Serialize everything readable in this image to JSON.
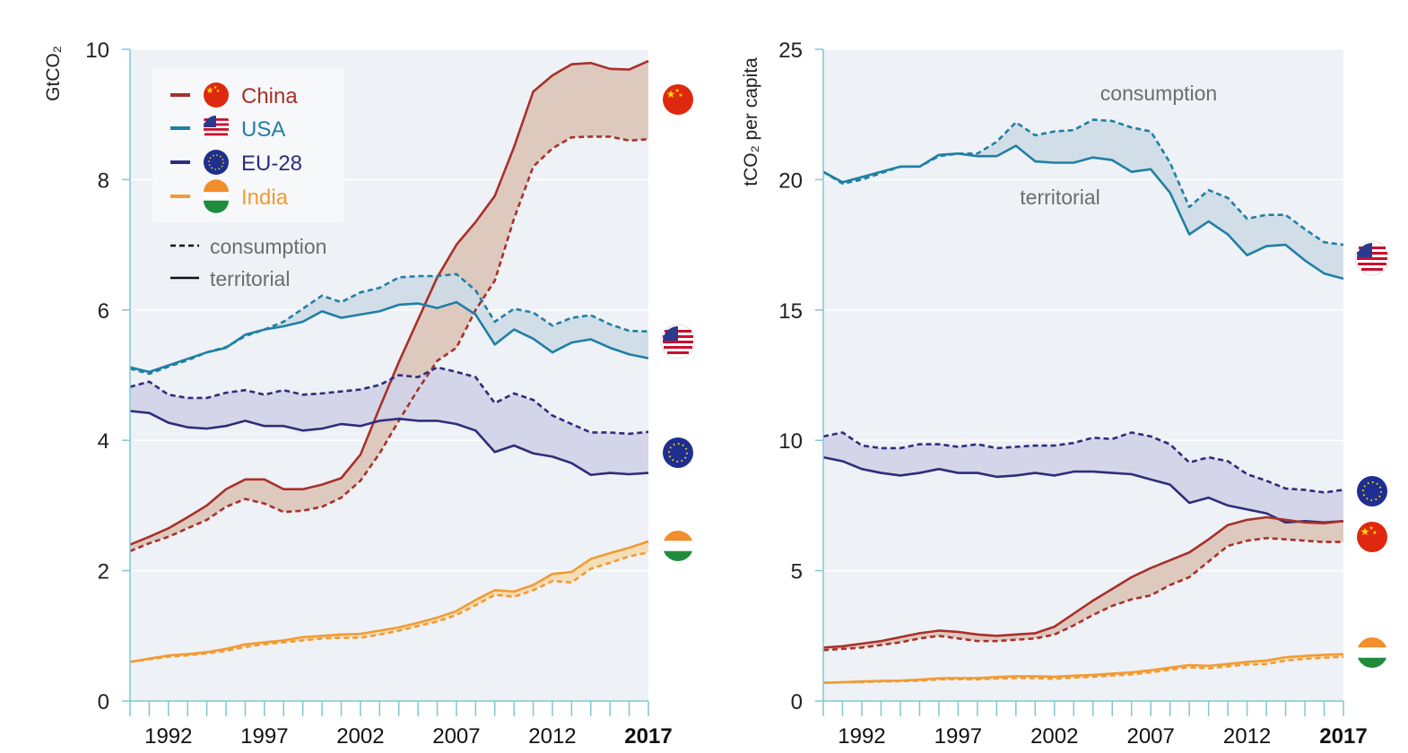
{
  "colors": {
    "china": "#a8302a",
    "usa": "#1f7fa5",
    "eu": "#2e2d7b",
    "india": "#f29a33",
    "china_fill": "#dcc4b9",
    "usa_fill": "#cddbe5",
    "eu_fill": "#d2d2e8",
    "india_fill": "#f4dbb0",
    "plot_bg": "#eef1f5",
    "axis": "#7fc7d6",
    "gray_text": "#6d6d6d"
  },
  "legend": {
    "items": [
      {
        "key": "china",
        "label": "China",
        "icon": "china-flag-icon"
      },
      {
        "key": "usa",
        "label": "USA",
        "icon": "usa-flag-icon"
      },
      {
        "key": "eu",
        "label": "EU-28",
        "icon": "eu-flag-icon"
      },
      {
        "key": "india",
        "label": "India",
        "icon": "india-flag-icon"
      }
    ],
    "consumption_label": "consumption",
    "territorial_label": "territorial"
  },
  "chart_data": [
    {
      "type": "line",
      "ylabel": "GtCO₂",
      "ylim": [
        0,
        10
      ],
      "yticks": [
        0,
        2,
        4,
        6,
        8,
        10
      ],
      "xlim": [
        1990,
        2017
      ],
      "xticks": [
        1992,
        1997,
        2002,
        2007,
        2012,
        2017
      ],
      "x": [
        1990,
        1991,
        1992,
        1993,
        1994,
        1995,
        1996,
        1997,
        1998,
        1999,
        2000,
        2001,
        2002,
        2003,
        2004,
        2005,
        2006,
        2007,
        2008,
        2009,
        2010,
        2011,
        2012,
        2013,
        2014,
        2015,
        2016,
        2017
      ],
      "series": [
        {
          "name": "China",
          "key": "china",
          "kind": "territorial",
          "values": [
            2.4,
            2.52,
            2.65,
            2.82,
            3.0,
            3.25,
            3.4,
            3.4,
            3.25,
            3.25,
            3.32,
            3.42,
            3.78,
            4.5,
            5.2,
            5.85,
            6.5,
            7.0,
            7.35,
            7.75,
            8.5,
            9.35,
            9.6,
            9.77,
            9.79,
            9.7,
            9.69,
            9.82
          ]
        },
        {
          "name": "China",
          "key": "china",
          "kind": "consumption",
          "values": [
            2.3,
            2.42,
            2.52,
            2.65,
            2.78,
            2.98,
            3.1,
            3.03,
            2.9,
            2.92,
            2.98,
            3.12,
            3.38,
            3.8,
            4.3,
            4.78,
            5.22,
            5.42,
            6.0,
            6.45,
            7.4,
            8.2,
            8.48,
            8.65,
            8.66,
            8.66,
            8.6,
            8.62
          ]
        },
        {
          "name": "USA",
          "key": "usa",
          "kind": "territorial",
          "values": [
            5.12,
            5.05,
            5.15,
            5.25,
            5.35,
            5.42,
            5.62,
            5.7,
            5.75,
            5.82,
            5.98,
            5.88,
            5.93,
            5.98,
            6.08,
            6.1,
            6.03,
            6.12,
            5.93,
            5.47,
            5.7,
            5.56,
            5.35,
            5.5,
            5.55,
            5.42,
            5.32,
            5.26
          ]
        },
        {
          "name": "USA",
          "key": "usa",
          "kind": "consumption",
          "values": [
            5.1,
            5.02,
            5.13,
            5.23,
            5.35,
            5.43,
            5.6,
            5.7,
            5.82,
            6.02,
            6.22,
            6.12,
            6.27,
            6.34,
            6.5,
            6.52,
            6.52,
            6.55,
            6.3,
            5.82,
            6.02,
            5.96,
            5.76,
            5.88,
            5.92,
            5.78,
            5.68,
            5.67
          ]
        },
        {
          "name": "EU-28",
          "key": "eu",
          "kind": "territorial",
          "values": [
            4.45,
            4.42,
            4.27,
            4.2,
            4.18,
            4.22,
            4.3,
            4.22,
            4.22,
            4.15,
            4.18,
            4.25,
            4.22,
            4.3,
            4.33,
            4.3,
            4.3,
            4.25,
            4.15,
            3.82,
            3.92,
            3.8,
            3.75,
            3.65,
            3.47,
            3.5,
            3.48,
            3.5
          ]
        },
        {
          "name": "EU-28",
          "key": "eu",
          "kind": "consumption",
          "values": [
            4.82,
            4.9,
            4.7,
            4.65,
            4.65,
            4.73,
            4.77,
            4.7,
            4.77,
            4.7,
            4.72,
            4.75,
            4.78,
            4.85,
            5.0,
            4.97,
            5.12,
            5.05,
            4.97,
            4.57,
            4.72,
            4.62,
            4.38,
            4.25,
            4.12,
            4.12,
            4.1,
            4.13
          ]
        },
        {
          "name": "India",
          "key": "india",
          "kind": "territorial",
          "values": [
            0.6,
            0.65,
            0.7,
            0.72,
            0.75,
            0.8,
            0.87,
            0.9,
            0.93,
            0.98,
            1.0,
            1.02,
            1.03,
            1.08,
            1.13,
            1.2,
            1.28,
            1.38,
            1.55,
            1.7,
            1.68,
            1.78,
            1.95,
            1.98,
            2.18,
            2.27,
            2.35,
            2.45
          ]
        },
        {
          "name": "India",
          "key": "india",
          "kind": "consumption",
          "values": [
            0.6,
            0.64,
            0.68,
            0.7,
            0.73,
            0.77,
            0.83,
            0.87,
            0.9,
            0.93,
            0.96,
            0.97,
            0.97,
            1.02,
            1.08,
            1.15,
            1.22,
            1.32,
            1.47,
            1.63,
            1.6,
            1.7,
            1.84,
            1.82,
            2.03,
            2.12,
            2.22,
            2.28
          ]
        }
      ]
    },
    {
      "type": "line",
      "ylabel": "tCO₂ per capita",
      "ylim": [
        0,
        25
      ],
      "yticks": [
        0,
        5,
        10,
        15,
        20,
        25
      ],
      "xlim": [
        1990,
        2017
      ],
      "xticks": [
        1992,
        1997,
        2002,
        2007,
        2012,
        2017
      ],
      "annotations": [
        "consumption",
        "territorial"
      ],
      "x": [
        1990,
        1991,
        1992,
        1993,
        1994,
        1995,
        1996,
        1997,
        1998,
        1999,
        2000,
        2001,
        2002,
        2003,
        2004,
        2005,
        2006,
        2007,
        2008,
        2009,
        2010,
        2011,
        2012,
        2013,
        2014,
        2015,
        2016,
        2017
      ],
      "series": [
        {
          "name": "USA",
          "key": "usa",
          "kind": "territorial",
          "values": [
            20.3,
            19.9,
            20.1,
            20.3,
            20.5,
            20.5,
            20.95,
            21.0,
            20.9,
            20.9,
            21.3,
            20.7,
            20.65,
            20.65,
            20.85,
            20.75,
            20.3,
            20.4,
            19.5,
            17.9,
            18.4,
            17.9,
            17.1,
            17.45,
            17.5,
            16.9,
            16.4,
            16.2
          ]
        },
        {
          "name": "USA",
          "key": "usa",
          "kind": "consumption",
          "values": [
            20.3,
            19.85,
            20.0,
            20.25,
            20.5,
            20.5,
            20.9,
            21.0,
            21.0,
            21.45,
            22.2,
            21.7,
            21.85,
            21.9,
            22.3,
            22.25,
            22.0,
            21.85,
            20.65,
            18.95,
            19.6,
            19.3,
            18.5,
            18.65,
            18.65,
            18.1,
            17.6,
            17.5
          ]
        },
        {
          "name": "EU-28",
          "key": "eu",
          "kind": "territorial",
          "values": [
            9.35,
            9.2,
            8.9,
            8.75,
            8.65,
            8.75,
            8.9,
            8.75,
            8.75,
            8.6,
            8.65,
            8.75,
            8.65,
            8.8,
            8.8,
            8.75,
            8.7,
            8.5,
            8.3,
            7.6,
            7.8,
            7.5,
            7.35,
            7.2,
            6.85,
            6.9,
            6.85,
            6.9
          ]
        },
        {
          "name": "EU-28",
          "key": "eu",
          "kind": "consumption",
          "values": [
            10.15,
            10.3,
            9.8,
            9.7,
            9.7,
            9.85,
            9.85,
            9.75,
            9.85,
            9.7,
            9.75,
            9.8,
            9.8,
            9.9,
            10.1,
            10.05,
            10.3,
            10.15,
            9.85,
            9.15,
            9.35,
            9.2,
            8.7,
            8.45,
            8.15,
            8.1,
            8.0,
            8.1
          ]
        },
        {
          "name": "China",
          "key": "china",
          "kind": "territorial",
          "values": [
            2.05,
            2.1,
            2.2,
            2.3,
            2.45,
            2.6,
            2.7,
            2.65,
            2.55,
            2.5,
            2.55,
            2.6,
            2.85,
            3.35,
            3.85,
            4.3,
            4.75,
            5.1,
            5.4,
            5.7,
            6.2,
            6.75,
            6.95,
            7.05,
            6.95,
            6.85,
            6.82,
            6.9
          ]
        },
        {
          "name": "China",
          "key": "china",
          "kind": "consumption",
          "values": [
            1.95,
            2.0,
            2.05,
            2.15,
            2.25,
            2.4,
            2.5,
            2.4,
            2.3,
            2.3,
            2.35,
            2.4,
            2.55,
            2.9,
            3.3,
            3.65,
            3.9,
            4.05,
            4.45,
            4.75,
            5.35,
            5.95,
            6.15,
            6.25,
            6.2,
            6.15,
            6.1,
            6.1
          ]
        },
        {
          "name": "India",
          "key": "india",
          "kind": "territorial",
          "values": [
            0.7,
            0.72,
            0.75,
            0.77,
            0.78,
            0.82,
            0.87,
            0.88,
            0.88,
            0.92,
            0.95,
            0.95,
            0.93,
            0.97,
            1.0,
            1.05,
            1.1,
            1.18,
            1.28,
            1.38,
            1.35,
            1.42,
            1.5,
            1.55,
            1.68,
            1.73,
            1.77,
            1.8
          ]
        },
        {
          "name": "India",
          "key": "india",
          "kind": "consumption",
          "values": [
            0.7,
            0.72,
            0.73,
            0.75,
            0.76,
            0.78,
            0.83,
            0.84,
            0.83,
            0.86,
            0.88,
            0.88,
            0.85,
            0.9,
            0.93,
            0.98,
            1.02,
            1.1,
            1.2,
            1.3,
            1.25,
            1.33,
            1.4,
            1.42,
            1.55,
            1.62,
            1.66,
            1.7
          ]
        }
      ]
    }
  ]
}
